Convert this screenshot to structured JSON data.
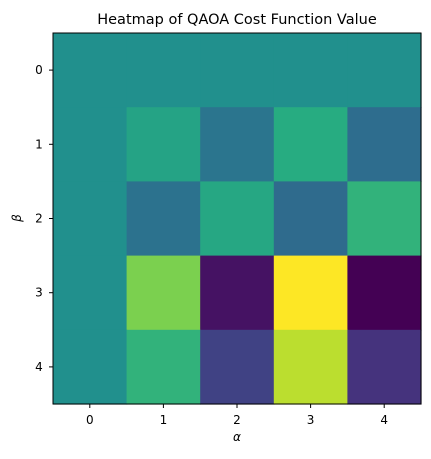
{
  "chart_data": {
    "type": "heatmap",
    "title": "Heatmap of QAOA Cost Function Value",
    "xlabel": "α",
    "ylabel": "β",
    "x_ticks": [
      "0",
      "1",
      "2",
      "3",
      "4"
    ],
    "y_ticks": [
      "0",
      "1",
      "2",
      "3",
      "4"
    ],
    "colormap": "viridis",
    "colorbar": false,
    "grid": false,
    "values": [
      [
        0.0,
        0.0,
        0.0,
        0.0,
        0.0
      ],
      [
        0.0,
        0.16,
        -0.22,
        0.24,
        -0.28
      ],
      [
        0.0,
        -0.24,
        0.2,
        -0.3,
        0.3
      ],
      [
        0.0,
        0.6,
        -0.9,
        1.0,
        -1.0
      ],
      [
        0.0,
        0.3,
        -0.6,
        0.8,
        -0.7
      ]
    ],
    "vmin": -1.0,
    "vmax": 1.0
  }
}
